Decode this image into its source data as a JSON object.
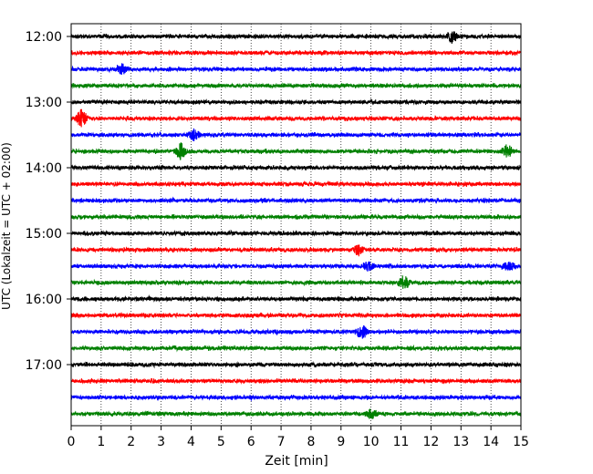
{
  "chart_data": {
    "type": "line",
    "subtype": "helicorder",
    "xlabel": "Zeit  [min]",
    "ylabel": "UTC (Lokalzeit = UTC + 02:00)",
    "xlim": [
      0,
      15
    ],
    "x_ticks": [
      "0",
      "1",
      "2",
      "3",
      "4",
      "5",
      "6",
      "7",
      "8",
      "9",
      "10",
      "11",
      "12",
      "13",
      "14",
      "15"
    ],
    "y_tick_labels": [
      "12:00",
      "13:00",
      "14:00",
      "15:00",
      "16:00",
      "17:00"
    ],
    "grid": "vertical dotted lines at each minute",
    "trace_colors": [
      "#000000",
      "#ff0000",
      "#0000ff",
      "#008000"
    ],
    "traces_per_hour": 4,
    "minutes_per_trace": 15,
    "start_time": "12:00",
    "traces": [
      {
        "start": "12:00",
        "color": "#000000",
        "events": [
          {
            "t": 12.7,
            "amp": 1.6
          }
        ]
      },
      {
        "start": "12:15",
        "color": "#ff0000",
        "events": []
      },
      {
        "start": "12:30",
        "color": "#0000ff",
        "events": [
          {
            "t": 1.7,
            "amp": 1.3
          }
        ]
      },
      {
        "start": "12:45",
        "color": "#008000",
        "events": []
      },
      {
        "start": "13:00",
        "color": "#000000",
        "events": []
      },
      {
        "start": "13:15",
        "color": "#ff0000",
        "events": [
          {
            "t": 0.35,
            "amp": 2.4
          }
        ]
      },
      {
        "start": "13:30",
        "color": "#0000ff",
        "events": [
          {
            "t": 4.1,
            "amp": 1.5
          }
        ]
      },
      {
        "start": "13:45",
        "color": "#008000",
        "events": [
          {
            "t": 3.65,
            "amp": 2.2
          },
          {
            "t": 14.55,
            "amp": 1.8
          }
        ]
      },
      {
        "start": "14:00",
        "color": "#000000",
        "events": []
      },
      {
        "start": "14:15",
        "color": "#ff0000",
        "events": []
      },
      {
        "start": "14:30",
        "color": "#0000ff",
        "events": []
      },
      {
        "start": "14:45",
        "color": "#008000",
        "events": []
      },
      {
        "start": "15:00",
        "color": "#000000",
        "events": []
      },
      {
        "start": "15:15",
        "color": "#ff0000",
        "events": [
          {
            "t": 9.6,
            "amp": 1.3
          }
        ]
      },
      {
        "start": "15:30",
        "color": "#0000ff",
        "events": [
          {
            "t": 9.9,
            "amp": 1.2
          },
          {
            "t": 14.6,
            "amp": 1.3
          }
        ]
      },
      {
        "start": "15:45",
        "color": "#008000",
        "events": [
          {
            "t": 11.1,
            "amp": 1.8
          }
        ]
      },
      {
        "start": "16:00",
        "color": "#000000",
        "events": []
      },
      {
        "start": "16:15",
        "color": "#ff0000",
        "events": []
      },
      {
        "start": "16:30",
        "color": "#0000ff",
        "events": [
          {
            "t": 9.7,
            "amp": 2.0
          }
        ]
      },
      {
        "start": "16:45",
        "color": "#008000",
        "events": []
      },
      {
        "start": "17:00",
        "color": "#000000",
        "events": []
      },
      {
        "start": "17:15",
        "color": "#ff0000",
        "events": []
      },
      {
        "start": "17:30",
        "color": "#0000ff",
        "events": []
      },
      {
        "start": "17:45",
        "color": "#008000",
        "events": [
          {
            "t": 10.0,
            "amp": 1.2
          }
        ]
      }
    ]
  }
}
